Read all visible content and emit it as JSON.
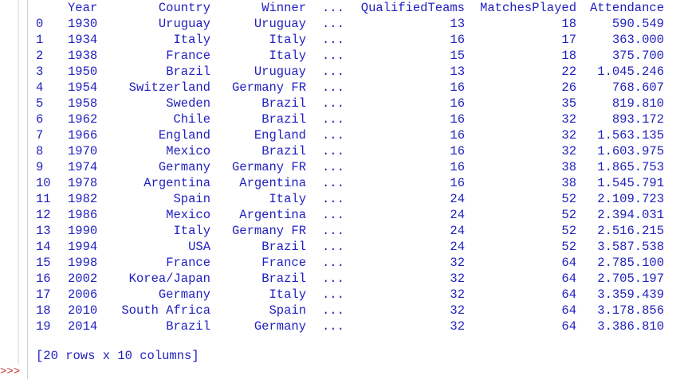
{
  "table": {
    "headers": {
      "year": "Year",
      "country": "Country",
      "winner": "Winner",
      "ellipsis": "...",
      "qualified": "QualifiedTeams",
      "matches": "MatchesPlayed",
      "attendance": "Attendance"
    },
    "rows": [
      {
        "idx": "0",
        "year": "1930",
        "country": "Uruguay",
        "winner": "Uruguay",
        "ellipsis": "...",
        "qualified": "13",
        "matches": "18",
        "attendance": "590.549"
      },
      {
        "idx": "1",
        "year": "1934",
        "country": "Italy",
        "winner": "Italy",
        "ellipsis": "...",
        "qualified": "16",
        "matches": "17",
        "attendance": "363.000"
      },
      {
        "idx": "2",
        "year": "1938",
        "country": "France",
        "winner": "Italy",
        "ellipsis": "...",
        "qualified": "15",
        "matches": "18",
        "attendance": "375.700"
      },
      {
        "idx": "3",
        "year": "1950",
        "country": "Brazil",
        "winner": "Uruguay",
        "ellipsis": "...",
        "qualified": "13",
        "matches": "22",
        "attendance": "1.045.246"
      },
      {
        "idx": "4",
        "year": "1954",
        "country": "Switzerland",
        "winner": "Germany FR",
        "ellipsis": "...",
        "qualified": "16",
        "matches": "26",
        "attendance": "768.607"
      },
      {
        "idx": "5",
        "year": "1958",
        "country": "Sweden",
        "winner": "Brazil",
        "ellipsis": "...",
        "qualified": "16",
        "matches": "35",
        "attendance": "819.810"
      },
      {
        "idx": "6",
        "year": "1962",
        "country": "Chile",
        "winner": "Brazil",
        "ellipsis": "...",
        "qualified": "16",
        "matches": "32",
        "attendance": "893.172"
      },
      {
        "idx": "7",
        "year": "1966",
        "country": "England",
        "winner": "England",
        "ellipsis": "...",
        "qualified": "16",
        "matches": "32",
        "attendance": "1.563.135"
      },
      {
        "idx": "8",
        "year": "1970",
        "country": "Mexico",
        "winner": "Brazil",
        "ellipsis": "...",
        "qualified": "16",
        "matches": "32",
        "attendance": "1.603.975"
      },
      {
        "idx": "9",
        "year": "1974",
        "country": "Germany",
        "winner": "Germany FR",
        "ellipsis": "...",
        "qualified": "16",
        "matches": "38",
        "attendance": "1.865.753"
      },
      {
        "idx": "10",
        "year": "1978",
        "country": "Argentina",
        "winner": "Argentina",
        "ellipsis": "...",
        "qualified": "16",
        "matches": "38",
        "attendance": "1.545.791"
      },
      {
        "idx": "11",
        "year": "1982",
        "country": "Spain",
        "winner": "Italy",
        "ellipsis": "...",
        "qualified": "24",
        "matches": "52",
        "attendance": "2.109.723"
      },
      {
        "idx": "12",
        "year": "1986",
        "country": "Mexico",
        "winner": "Argentina",
        "ellipsis": "...",
        "qualified": "24",
        "matches": "52",
        "attendance": "2.394.031"
      },
      {
        "idx": "13",
        "year": "1990",
        "country": "Italy",
        "winner": "Germany FR",
        "ellipsis": "...",
        "qualified": "24",
        "matches": "52",
        "attendance": "2.516.215"
      },
      {
        "idx": "14",
        "year": "1994",
        "country": "USA",
        "winner": "Brazil",
        "ellipsis": "...",
        "qualified": "24",
        "matches": "52",
        "attendance": "3.587.538"
      },
      {
        "idx": "15",
        "year": "1998",
        "country": "France",
        "winner": "France",
        "ellipsis": "...",
        "qualified": "32",
        "matches": "64",
        "attendance": "2.785.100"
      },
      {
        "idx": "16",
        "year": "2002",
        "country": "Korea/Japan",
        "winner": "Brazil",
        "ellipsis": "...",
        "qualified": "32",
        "matches": "64",
        "attendance": "2.705.197"
      },
      {
        "idx": "17",
        "year": "2006",
        "country": "Germany",
        "winner": "Italy",
        "ellipsis": "...",
        "qualified": "32",
        "matches": "64",
        "attendance": "3.359.439"
      },
      {
        "idx": "18",
        "year": "2010",
        "country": "South Africa",
        "winner": "Spain",
        "ellipsis": "...",
        "qualified": "32",
        "matches": "64",
        "attendance": "3.178.856"
      },
      {
        "idx": "19",
        "year": "2014",
        "country": "Brazil",
        "winner": "Germany",
        "ellipsis": "...",
        "qualified": "32",
        "matches": "64",
        "attendance": "3.386.810"
      }
    ]
  },
  "footer": "[20 rows x 10 columns]",
  "prompt": ">>>",
  "colors": {
    "output_text": "#1f1fbf",
    "prompt": "#c03030",
    "background": "#ffffff"
  }
}
